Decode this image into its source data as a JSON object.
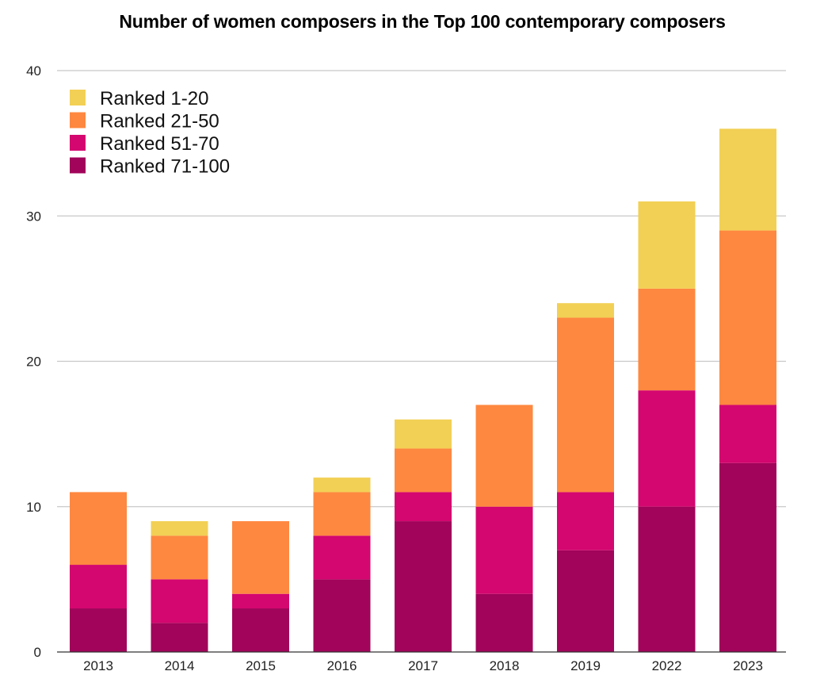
{
  "chart_data": {
    "type": "bar",
    "stacked": true,
    "title": "Number of women composers in the Top 100 contemporary composers",
    "xlabel": "",
    "ylabel": "",
    "ylim": [
      0,
      40
    ],
    "yticks": [
      0,
      10,
      20,
      30,
      40
    ],
    "grid": true,
    "legend_position": "top-left",
    "categories": [
      "2013",
      "2014",
      "2015",
      "2016",
      "2017",
      "2018",
      "2019",
      "2022",
      "2023"
    ],
    "series": [
      {
        "name": "Ranked 71-100",
        "color": "#a1045a",
        "values": [
          3,
          2,
          3,
          5,
          9,
          4,
          7,
          10,
          13
        ]
      },
      {
        "name": "Ranked 51-70",
        "color": "#d4066f",
        "values": [
          3,
          3,
          1,
          3,
          2,
          6,
          4,
          8,
          4
        ]
      },
      {
        "name": "Ranked 21-50",
        "color": "#fe8840",
        "values": [
          5,
          3,
          5,
          3,
          3,
          7,
          12,
          7,
          12
        ]
      },
      {
        "name": "Ranked 1-20",
        "color": "#f2d055",
        "values": [
          0,
          1,
          0,
          1,
          2,
          0,
          1,
          6,
          7
        ]
      }
    ],
    "legend_order": [
      "Ranked 1-20",
      "Ranked 21-50",
      "Ranked 51-70",
      "Ranked 71-100"
    ]
  }
}
